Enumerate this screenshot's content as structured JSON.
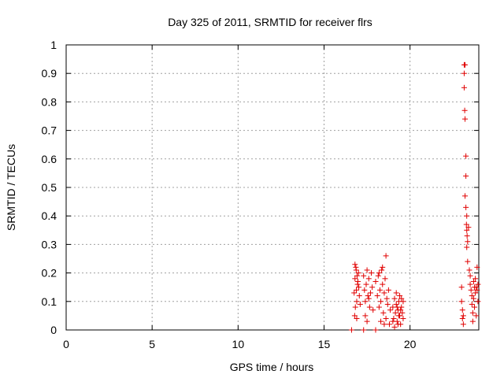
{
  "chart_data": {
    "type": "scatter",
    "title": "Day 325 of 2011, SRMTID for receiver flrs",
    "xlabel": "GPS time / hours",
    "ylabel": "SRMTID / TECUs",
    "xlim": [
      0,
      24
    ],
    "ylim": [
      0,
      1
    ],
    "xticks": [
      0,
      5,
      10,
      15,
      20
    ],
    "yticks": [
      0,
      0.1,
      0.2,
      0.3,
      0.4,
      0.5,
      0.6,
      0.7,
      0.8,
      0.9,
      1
    ],
    "xtick_labels": [
      "0",
      "5",
      "10",
      "15",
      "20"
    ],
    "ytick_labels": [
      "0",
      "0.1",
      "0.2",
      "0.3",
      "0.4",
      "0.5",
      "0.6",
      "0.7",
      "0.8",
      "0.9",
      "1"
    ],
    "grid": true,
    "marker": "+",
    "marker_color": "#e00000",
    "series": [
      {
        "name": "SRMTID",
        "points": [
          [
            16.6,
            0.0
          ],
          [
            17.3,
            0.0
          ],
          [
            18.0,
            0.0
          ],
          [
            16.75,
            0.13
          ],
          [
            16.8,
            0.18
          ],
          [
            16.85,
            0.22
          ],
          [
            16.9,
            0.1
          ],
          [
            16.95,
            0.16
          ],
          [
            17.0,
            0.2
          ],
          [
            16.78,
            0.05
          ],
          [
            16.82,
            0.08
          ],
          [
            16.88,
            0.14
          ],
          [
            16.92,
            0.19
          ],
          [
            17.05,
            0.12
          ],
          [
            17.1,
            0.09
          ],
          [
            16.8,
            0.23
          ],
          [
            16.87,
            0.21
          ],
          [
            16.97,
            0.17
          ],
          [
            17.02,
            0.15
          ],
          [
            16.9,
            0.04
          ],
          [
            17.3,
            0.19
          ],
          [
            17.35,
            0.14
          ],
          [
            17.4,
            0.1
          ],
          [
            17.45,
            0.16
          ],
          [
            17.5,
            0.21
          ],
          [
            17.55,
            0.12
          ],
          [
            17.6,
            0.18
          ],
          [
            17.65,
            0.08
          ],
          [
            17.7,
            0.13
          ],
          [
            17.75,
            0.2
          ],
          [
            17.4,
            0.05
          ],
          [
            17.5,
            0.03
          ],
          [
            17.6,
            0.11
          ],
          [
            17.8,
            0.15
          ],
          [
            17.85,
            0.07
          ],
          [
            18.0,
            0.17
          ],
          [
            18.1,
            0.12
          ],
          [
            18.15,
            0.19
          ],
          [
            18.2,
            0.08
          ],
          [
            18.25,
            0.14
          ],
          [
            18.3,
            0.1
          ],
          [
            18.35,
            0.21
          ],
          [
            18.4,
            0.16
          ],
          [
            18.45,
            0.06
          ],
          [
            18.5,
            0.13
          ],
          [
            18.55,
            0.18
          ],
          [
            18.6,
            0.26
          ],
          [
            18.6,
            0.04
          ],
          [
            18.65,
            0.11
          ],
          [
            18.7,
            0.09
          ],
          [
            18.75,
            0.14
          ],
          [
            18.8,
            0.02
          ],
          [
            18.85,
            0.07
          ],
          [
            18.2,
            0.2
          ],
          [
            18.4,
            0.22
          ],
          [
            18.5,
            0.02
          ],
          [
            18.3,
            0.03
          ],
          [
            19.0,
            0.08
          ],
          [
            19.05,
            0.04
          ],
          [
            19.1,
            0.11
          ],
          [
            19.15,
            0.06
          ],
          [
            19.2,
            0.09
          ],
          [
            19.25,
            0.03
          ],
          [
            19.3,
            0.07
          ],
          [
            19.35,
            0.1
          ],
          [
            19.4,
            0.05
          ],
          [
            19.45,
            0.02
          ],
          [
            19.5,
            0.08
          ],
          [
            19.55,
            0.06
          ],
          [
            19.6,
            0.04
          ],
          [
            19.2,
            0.13
          ],
          [
            19.4,
            0.12
          ],
          [
            19.5,
            0.11
          ],
          [
            19.1,
            0.01
          ],
          [
            19.3,
            0.02
          ],
          [
            19.0,
            0.03
          ],
          [
            19.6,
            0.1
          ],
          [
            19.25,
            0.08
          ],
          [
            19.45,
            0.07
          ],
          [
            19.35,
            0.05
          ],
          [
            23.0,
            0.15
          ],
          [
            23.0,
            0.1
          ],
          [
            23.05,
            0.07
          ],
          [
            23.05,
            0.04
          ],
          [
            23.1,
            0.02
          ],
          [
            23.1,
            0.05
          ],
          [
            23.15,
            0.93
          ],
          [
            23.2,
            0.93
          ],
          [
            23.15,
            0.9
          ],
          [
            23.15,
            0.85
          ],
          [
            23.18,
            0.77
          ],
          [
            23.2,
            0.74
          ],
          [
            23.25,
            0.61
          ],
          [
            23.25,
            0.54
          ],
          [
            23.2,
            0.47
          ],
          [
            23.25,
            0.43
          ],
          [
            23.3,
            0.4
          ],
          [
            23.28,
            0.37
          ],
          [
            23.3,
            0.35
          ],
          [
            23.32,
            0.33
          ],
          [
            23.35,
            0.31
          ],
          [
            23.3,
            0.29
          ],
          [
            23.4,
            0.36
          ],
          [
            23.35,
            0.24
          ],
          [
            23.45,
            0.21
          ],
          [
            23.5,
            0.19
          ],
          [
            23.5,
            0.16
          ],
          [
            23.55,
            0.14
          ],
          [
            23.6,
            0.12
          ],
          [
            23.6,
            0.09
          ],
          [
            23.65,
            0.06
          ],
          [
            23.65,
            0.03
          ],
          [
            23.7,
            0.17
          ],
          [
            23.7,
            0.11
          ],
          [
            23.75,
            0.15
          ],
          [
            23.75,
            0.08
          ],
          [
            23.8,
            0.13
          ],
          [
            23.8,
            0.18
          ],
          [
            23.85,
            0.15
          ],
          [
            23.85,
            0.05
          ],
          [
            23.9,
            0.22
          ],
          [
            23.9,
            0.14
          ],
          [
            23.95,
            0.1
          ],
          [
            23.95,
            0.16
          ]
        ]
      }
    ]
  }
}
